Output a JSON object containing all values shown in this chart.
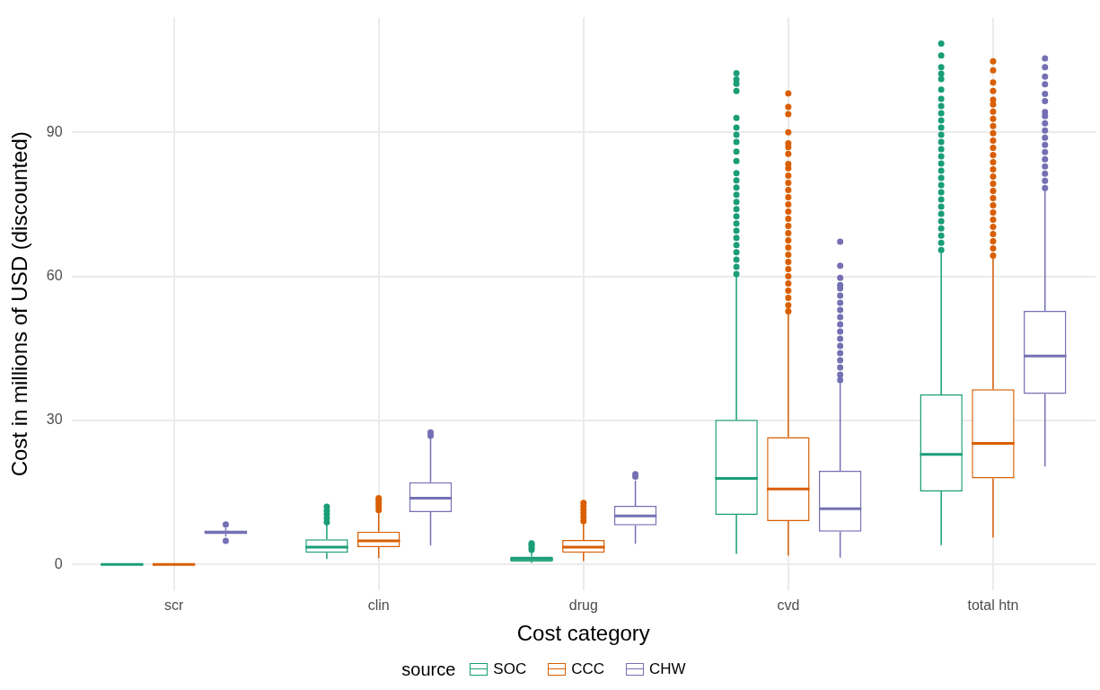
{
  "chart_data": {
    "type": "box",
    "xlabel": "Cost category",
    "ylabel": "Cost in millions of USD (discounted)",
    "legend_title": "source",
    "legend": "bottom",
    "grid": true,
    "categories": [
      "scr",
      "clin",
      "drug",
      "cvd",
      "total htn"
    ],
    "ylim": [
      -5.4,
      113.9
    ],
    "yticks": [
      0,
      30,
      60,
      90
    ],
    "series": [
      {
        "name": "SOC",
        "color": "#1b9e77",
        "boxes": [
          {
            "low": 0,
            "q1": 0,
            "median": 0,
            "q3": 0.1,
            "high": 0.2
          },
          {
            "low": 1.1,
            "q1": 2.4,
            "median": 3.6,
            "q3": 5.2,
            "high": 8.5,
            "outliers": [
              8.8,
              9.6,
              10.4,
              11.2,
              12.0
            ]
          },
          {
            "low": 0.3,
            "q1": 0.6,
            "median": 1.1,
            "q3": 1.6,
            "high": 2.9,
            "outliers": [
              3.0,
              3.4,
              3.8,
              4.2,
              4.4
            ]
          },
          {
            "low": 2.2,
            "q1": 10.3,
            "median": 17.9,
            "q3": 30.1,
            "high": 60.0,
            "outliers": [
              60.5,
              62,
              63.5,
              65,
              66.5,
              68,
              69.5,
              71,
              72.5,
              74,
              75.5,
              77,
              78.5,
              80,
              81.5,
              84,
              86,
              88,
              89.5,
              91,
              93,
              98.6,
              100.1,
              101,
              102.3
            ]
          },
          {
            "low": 4.0,
            "q1": 15.2,
            "median": 22.9,
            "q3": 35.4,
            "high": 65.1,
            "outliers": [
              65.5,
              67,
              68.5,
              70,
              71.5,
              73,
              74.5,
              76,
              77.5,
              79,
              80.5,
              82,
              83.5,
              85,
              86.5,
              88,
              89.5,
              91,
              92.5,
              94,
              95.5,
              97,
              98.9,
              101.1,
              102.2,
              103.6,
              106.0,
              108.5
            ]
          }
        ]
      },
      {
        "name": "CCC",
        "color": "#d95f02",
        "boxes": [
          {
            "low": 0,
            "q1": 0,
            "median": 0,
            "q3": 0.1,
            "high": 0.2
          },
          {
            "low": 1.3,
            "q1": 3.6,
            "median": 4.9,
            "q3": 6.8,
            "high": 11.0,
            "outliers": [
              11.3,
              12.0,
              12.6,
              13.2,
              13.8
            ]
          },
          {
            "low": 0.7,
            "q1": 2.4,
            "median": 3.6,
            "q3": 5.1,
            "high": 8.8,
            "outliers": [
              9.0,
              9.8,
              10.6,
              11.4,
              12.1,
              12.8
            ]
          },
          {
            "low": 1.8,
            "q1": 9.0,
            "median": 15.7,
            "q3": 26.5,
            "high": 52.4,
            "outliers": [
              52.7,
              54,
              55.5,
              57,
              58.5,
              60,
              61.5,
              63,
              64.5,
              66,
              67.5,
              69,
              70.5,
              72,
              73.5,
              75,
              76.5,
              78,
              79.5,
              81,
              82.5,
              83.4,
              85.5,
              86.9,
              87.7,
              90.0,
              93.8,
              95.3,
              98.1
            ]
          },
          {
            "low": 5.6,
            "q1": 17.9,
            "median": 25.2,
            "q3": 36.5,
            "high": 64.0,
            "outliers": [
              64.3,
              65.8,
              67.3,
              68.8,
              70.3,
              71.8,
              73.3,
              74.8,
              76.3,
              77.8,
              79.3,
              80.8,
              82.3,
              83.8,
              85.3,
              86.8,
              88.3,
              89.8,
              91.3,
              92.8,
              94.3,
              95.8,
              96.8,
              98.6,
              100.4,
              102.9,
              104.8
            ]
          }
        ]
      },
      {
        "name": "CHW",
        "color": "#7570b3",
        "boxes": [
          {
            "low": 5.8,
            "q1": 6.3,
            "median": 6.7,
            "q3": 7.0,
            "high": 7.6,
            "outliers": [
              4.9,
              8.3
            ]
          },
          {
            "low": 3.9,
            "q1": 10.9,
            "median": 13.8,
            "q3": 17.1,
            "high": 26.3,
            "outliers": [
              26.8,
              27.5
            ]
          },
          {
            "low": 4.3,
            "q1": 8.1,
            "median": 10.1,
            "q3": 12.2,
            "high": 17.5,
            "outliers": [
              18.3,
              18.8
            ]
          },
          {
            "low": 1.4,
            "q1": 6.8,
            "median": 11.6,
            "q3": 19.5,
            "high": 38.0,
            "outliers": [
              38.4,
              39.5,
              41,
              42.5,
              44,
              45.5,
              47,
              48.5,
              50,
              51.5,
              53,
              54.5,
              56,
              57.5,
              58.2,
              59.7,
              62.2,
              67.2
            ]
          },
          {
            "low": 20.4,
            "q1": 35.5,
            "median": 43.4,
            "q3": 52.8,
            "high": 78.0,
            "outliers": [
              78.4,
              79.9,
              81.4,
              82.9,
              84.4,
              85.9,
              87.4,
              88.9,
              90.4,
              91.9,
              93.4,
              94.2,
              96.5,
              98,
              100.0,
              101.6,
              103.6,
              105.4
            ]
          }
        ]
      }
    ]
  }
}
